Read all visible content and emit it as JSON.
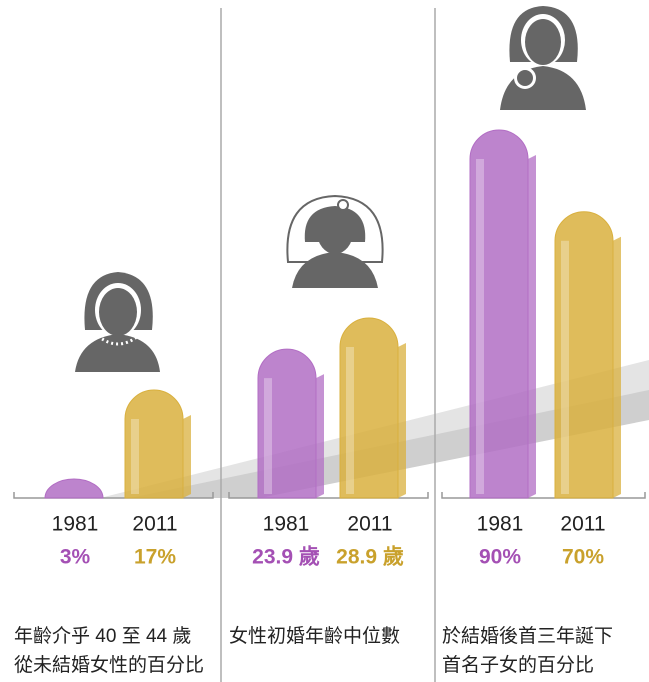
{
  "chart_data": [
    {
      "type": "bar",
      "categories": [
        "1981",
        "2011"
      ],
      "values": [
        3,
        17
      ],
      "value_labels": [
        "3%",
        "17%"
      ],
      "colors": [
        "#b26ec4",
        "#d9b03e"
      ],
      "caption": [
        "年齡介乎 40 至 44 歲",
        "從未結婚女性的百分比"
      ]
    },
    {
      "type": "bar",
      "categories": [
        "1981",
        "2011"
      ],
      "values": [
        23.9,
        28.9
      ],
      "value_labels": [
        "23.9 歲",
        "28.9 歲"
      ],
      "colors": [
        "#b26ec4",
        "#d9b03e"
      ],
      "caption": [
        "女性初婚年齡中位數"
      ]
    },
    {
      "type": "bar",
      "categories": [
        "1981",
        "2011"
      ],
      "values": [
        90,
        70
      ],
      "value_labels": [
        "90%",
        "70%"
      ],
      "colors": [
        "#b26ec4",
        "#d9b03e"
      ],
      "caption": [
        "於結婚後首三年誕下",
        "首名子女的百分比"
      ]
    }
  ]
}
